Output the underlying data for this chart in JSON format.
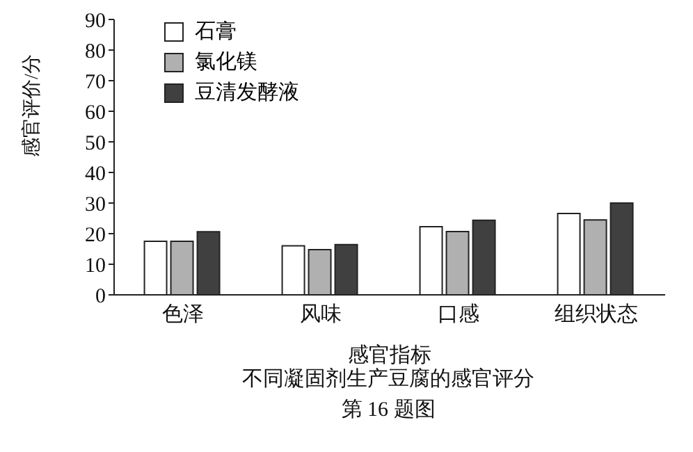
{
  "chart_data": {
    "type": "bar",
    "categories": [
      "色泽",
      "风味",
      "口感",
      "组织状态"
    ],
    "series": [
      {
        "name": "石膏",
        "color": "#ffffff",
        "values": [
          17.5,
          16,
          22.3,
          26.6
        ]
      },
      {
        "name": "氯化镁",
        "color": "#b0b0b0",
        "values": [
          17.5,
          14.8,
          20.7,
          24.5
        ]
      },
      {
        "name": "豆清发酵液",
        "color": "#404040",
        "values": [
          20.6,
          16.4,
          24.4,
          30
        ]
      }
    ],
    "xlabel": "感官指标",
    "ylabel": "感官评价/分",
    "ylim": [
      0,
      90
    ],
    "yticks": [
      0,
      10,
      20,
      30,
      40,
      50,
      60,
      70,
      80,
      90
    ],
    "legend": "top left",
    "grid": false,
    "annotations": [
      "不同凝固剂生产豆腐的感官评分",
      "第 16 题图"
    ]
  }
}
